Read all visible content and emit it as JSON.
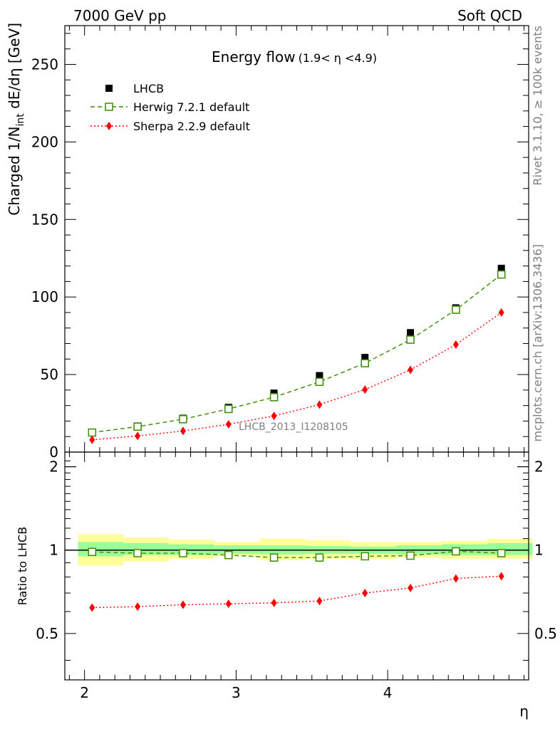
{
  "header": {
    "left": "7000 GeV pp",
    "right": "Soft QCD"
  },
  "side_labels": {
    "rivet": "Rivet 3.1.10, ≥ 100k events",
    "mcplots": "mcplots.cern.ch [arXiv:1306.3436]"
  },
  "chart_data": [
    {
      "type": "scatter",
      "panel": "main",
      "title": "Energy flow",
      "title_sub": "(1.9< η <4.9)",
      "ylabel_main": "Charged 1/N",
      "ylabel_sub": "int",
      "ylabel_rest": " dE/dη [GeV]",
      "xlabel": "η",
      "watermark": "LHCB_2013_I1208105",
      "xlim": [
        1.87,
        4.93
      ],
      "ylim": [
        0,
        275
      ],
      "x_ticks": [
        2,
        3,
        4
      ],
      "y_ticks": [
        0,
        50,
        100,
        150,
        200,
        250
      ],
      "legend_position": "top-left",
      "x": [
        2.05,
        2.35,
        2.65,
        2.95,
        3.25,
        3.55,
        3.85,
        4.15,
        4.45,
        4.75
      ],
      "series": [
        {
          "name": "LHCB",
          "color": "#000000",
          "marker": "filled-square",
          "line": "none",
          "values": [
            12.8,
            16.8,
            21.8,
            28.8,
            38.0,
            49.3,
            61.0,
            77.0,
            93.0,
            118.5
          ]
        },
        {
          "name": "Herwig 7.2.1 default",
          "color": "#3a8c00",
          "marker": "open-square",
          "line": "dashed",
          "values": [
            12.6,
            16.4,
            21.2,
            27.8,
            35.4,
            45.3,
            57.3,
            72.5,
            91.8,
            114.5
          ]
        },
        {
          "name": "Sherpa 2.2.9 default",
          "color": "#ff0000",
          "marker": "filled-diamond",
          "line": "dotted",
          "values": [
            7.9,
            10.4,
            13.6,
            17.9,
            23.3,
            30.6,
            40.3,
            53.0,
            69.3,
            90.0
          ]
        }
      ]
    },
    {
      "type": "scatter",
      "panel": "ratio",
      "ylabel": "Ratio to LHCB",
      "xlim": [
        1.87,
        4.93
      ],
      "ylim": [
        0.34,
        2.26
      ],
      "y_scale": "log",
      "y_ticks": [
        0.5,
        1,
        2
      ],
      "x": [
        2.05,
        2.35,
        2.65,
        2.95,
        3.25,
        3.55,
        3.85,
        4.15,
        4.45,
        4.75
      ],
      "bin_edges": [
        1.9,
        2.2,
        2.5,
        2.8,
        3.1,
        3.4,
        3.7,
        4.0,
        4.3,
        4.6,
        4.9
      ],
      "band_inner": [
        [
          0.95,
          1.07
        ],
        [
          0.96,
          1.06
        ],
        [
          0.96,
          1.05
        ],
        [
          0.97,
          1.04
        ],
        [
          0.965,
          1.04
        ],
        [
          0.97,
          1.035
        ],
        [
          0.97,
          1.03
        ],
        [
          0.965,
          1.04
        ],
        [
          0.96,
          1.05
        ],
        [
          0.96,
          1.06
        ]
      ],
      "band_outer": [
        [
          0.88,
          1.14
        ],
        [
          0.91,
          1.11
        ],
        [
          0.93,
          1.09
        ],
        [
          0.95,
          1.07
        ],
        [
          0.92,
          1.1
        ],
        [
          0.93,
          1.085
        ],
        [
          0.93,
          1.07
        ],
        [
          0.94,
          1.07
        ],
        [
          0.93,
          1.08
        ],
        [
          0.93,
          1.1
        ]
      ],
      "series": [
        {
          "name": "Herwig 7.2.1 default",
          "color": "#3a8c00",
          "marker": "open-square",
          "line": "dashed",
          "values": [
            0.985,
            0.975,
            0.975,
            0.96,
            0.94,
            0.94,
            0.95,
            0.955,
            0.99,
            0.975
          ]
        },
        {
          "name": "Sherpa 2.2.9 default",
          "color": "#ff0000",
          "marker": "filled-diamond",
          "line": "dotted",
          "values": [
            0.62,
            0.625,
            0.635,
            0.64,
            0.645,
            0.655,
            0.7,
            0.73,
            0.79,
            0.805
          ]
        }
      ]
    }
  ]
}
